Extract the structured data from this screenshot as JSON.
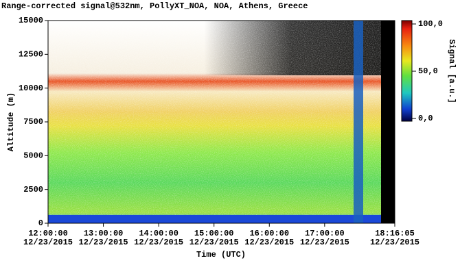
{
  "chart_data": {
    "type": "heatmap",
    "title": "Range-corrected signal@532nm, PollyXT_NOA, NOA, Athens, Greece",
    "xlabel": "Time (UTC)",
    "ylabel": "Altitude (m)",
    "colorbar_label": "Signal [a.u.]",
    "xlim": [
      "12:00:00",
      "18:16:05"
    ],
    "xticks": [
      {
        "time": "12:00:00",
        "date": "12/23/2015"
      },
      {
        "time": "13:00:00",
        "date": "12/23/2015"
      },
      {
        "time": "14:00:00",
        "date": "12/23/2015"
      },
      {
        "time": "15:00:00",
        "date": "12/23/2015"
      },
      {
        "time": "16:00:00",
        "date": "12/23/2015"
      },
      {
        "time": "17:00:00",
        "date": "12/23/2015"
      },
      {
        "time": "18:16:05",
        "date": "12/23/2015"
      }
    ],
    "ylim": [
      0,
      15000
    ],
    "yticks": [
      0,
      2500,
      5000,
      7500,
      10000,
      12500,
      15000
    ],
    "clim": [
      0,
      100
    ],
    "cticks": [
      {
        "value": 100,
        "label": "100,0"
      },
      {
        "value": 50,
        "label": "50,0"
      },
      {
        "value": 0,
        "label": "0,0"
      }
    ]
  }
}
